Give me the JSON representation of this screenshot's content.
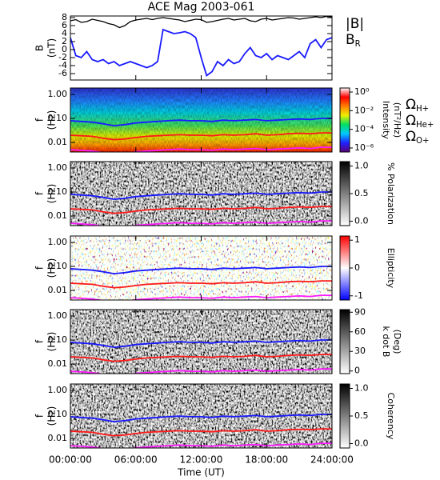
{
  "chart_data": [
    {
      "type": "line",
      "title": "ACE Mag 2003-061",
      "ylabel": [
        "B",
        "(nT)"
      ],
      "ylim": [
        -7.6,
        8.4
      ],
      "yticks": [
        8,
        6,
        4,
        2,
        0,
        -2,
        -4,
        -6
      ],
      "xlim": [
        0,
        24
      ],
      "x": [
        0,
        0.5,
        1,
        1.5,
        2,
        2.5,
        3,
        3.5,
        4,
        4.5,
        5,
        5.5,
        6,
        6.5,
        7,
        7.5,
        8,
        8.5,
        9,
        9.5,
        10,
        10.5,
        11,
        11.5,
        12,
        12.5,
        13,
        13.5,
        14,
        14.5,
        15,
        15.5,
        16,
        16.5,
        17,
        17.5,
        18,
        18.5,
        19,
        19.5,
        20,
        20.5,
        21,
        21.5,
        22,
        22.5,
        23,
        23.5,
        24
      ],
      "series": [
        {
          "name": "|B|",
          "color": "#000000",
          "values": [
            7.2,
            7.5,
            6.8,
            7.0,
            7.6,
            7.3,
            7.0,
            6.5,
            6.2,
            5.5,
            6.0,
            7.0,
            7.4,
            7.6,
            7.8,
            7.5,
            7.8,
            8.0,
            7.8,
            7.6,
            7.4,
            7.0,
            7.3,
            7.6,
            7.5,
            6.8,
            7.0,
            7.3,
            7.6,
            7.8,
            7.4,
            7.6,
            7.8,
            7.2,
            7.0,
            7.6,
            7.8,
            7.4,
            7.6,
            7.8,
            8.0,
            7.9,
            7.6,
            7.8,
            8.0,
            8.2,
            8.0,
            8.3,
            8.2
          ]
        },
        {
          "name": "B",
          "subscript": "R",
          "color": "#1a1aff",
          "values": [
            3.0,
            -1.5,
            -2.0,
            -0.5,
            -2.5,
            -3.0,
            -2.5,
            -3.5,
            -3.0,
            -4.0,
            -3.5,
            -3.0,
            -3.5,
            -4.0,
            -4.5,
            -4.0,
            -3.0,
            5.0,
            4.5,
            4.0,
            4.2,
            4.5,
            4.0,
            3.0,
            -2.0,
            -6.5,
            -5.5,
            -3.0,
            -4.0,
            -2.5,
            -3.5,
            -3.0,
            -1.0,
            0.5,
            -1.5,
            -2.0,
            -1.0,
            -2.5,
            -1.5,
            -2.0,
            -2.5,
            -1.5,
            -0.5,
            -2.0,
            1.5,
            2.5,
            0.5,
            2.5,
            3.0
          ]
        }
      ]
    },
    {
      "type": "spectrogram",
      "ylabel": [
        "f",
        "(Hz)"
      ],
      "log_y": true,
      "ylim": [
        0.004,
        1.85
      ],
      "yticks": [
        {
          "value": 1,
          "label": "1.00"
        },
        {
          "value": 0.1,
          "label": "0.10"
        },
        {
          "value": 0.01,
          "label": "0.01"
        }
      ],
      "xlim": [
        0,
        24
      ],
      "x": [
        0,
        1,
        2,
        3,
        4,
        5,
        6,
        7,
        8,
        9,
        10,
        11,
        12,
        13,
        14,
        15,
        16,
        17,
        18,
        19,
        20,
        21,
        22,
        23,
        24
      ],
      "series": [
        {
          "name": "Ω",
          "subscript": "H+",
          "color": "#1a1aff",
          "values": [
            0.08,
            0.075,
            0.07,
            0.06,
            0.05,
            0.055,
            0.065,
            0.07,
            0.075,
            0.08,
            0.085,
            0.08,
            0.08,
            0.075,
            0.085,
            0.08,
            0.085,
            0.09,
            0.08,
            0.085,
            0.09,
            0.095,
            0.09,
            0.1,
            0.1
          ]
        },
        {
          "name": "Ω",
          "subscript": "He+",
          "color": "#ff1a1a",
          "values": [
            0.02,
            0.019,
            0.018,
            0.015,
            0.013,
            0.014,
            0.016,
            0.018,
            0.019,
            0.02,
            0.021,
            0.02,
            0.02,
            0.019,
            0.021,
            0.02,
            0.021,
            0.023,
            0.02,
            0.021,
            0.023,
            0.024,
            0.023,
            0.025,
            0.025
          ]
        },
        {
          "name": "Ω",
          "subscript": "O+",
          "color": "#ff1aff",
          "values": [
            0.005,
            0.0047,
            0.0044,
            0.0038,
            0.0031,
            0.0034,
            0.0041,
            0.0044,
            0.0047,
            0.005,
            0.0053,
            0.005,
            0.005,
            0.0047,
            0.0053,
            0.005,
            0.0053,
            0.0056,
            0.005,
            0.0053,
            0.0056,
            0.0059,
            0.0056,
            0.0063,
            0.0063
          ]
        }
      ],
      "colorbar": {
        "label": [
          "Intensity",
          "(nT²/Hz)"
        ],
        "log": true,
        "lim": [
          3.7e-07,
          2.7
        ],
        "ticks": [
          {
            "value": 1,
            "label": "10⁰"
          },
          {
            "value": 0.01,
            "label": "10⁻²"
          },
          {
            "value": 0.0001,
            "label": "10⁻⁴"
          },
          {
            "value": 1e-06,
            "label": "10⁻⁶"
          }
        ],
        "colors": [
          "#5a007a",
          "#2020ff",
          "#00c8ff",
          "#00e060",
          "#f0f000",
          "#ff8000",
          "#ff0000",
          "#ffffff"
        ]
      }
    },
    {
      "type": "spectrogram",
      "ylabel": [
        "f",
        "(Hz)"
      ],
      "log_y": true,
      "ylim": [
        0.004,
        1.85
      ],
      "yticks": [
        {
          "value": 1,
          "label": "1.00"
        },
        {
          "value": 0.1,
          "label": "0.10"
        },
        {
          "value": 0.01,
          "label": "0.01"
        }
      ],
      "colorbar": {
        "label": [
          "% Polarization"
        ],
        "lim": [
          -0.08,
          1.08
        ],
        "ticks": [
          {
            "value": 1,
            "label": "1.0"
          },
          {
            "value": 0.5,
            "label": "0.5"
          },
          {
            "value": 0,
            "label": "0.0"
          }
        ],
        "colors": [
          "#ffffff",
          "#000000"
        ]
      }
    },
    {
      "type": "spectrogram",
      "ylabel": [
        "f",
        "(Hz)"
      ],
      "log_y": true,
      "ylim": [
        0.004,
        1.85
      ],
      "yticks": [
        {
          "value": 1,
          "label": "1.00"
        },
        {
          "value": 0.1,
          "label": "0.10"
        },
        {
          "value": 0.01,
          "label": "0.01"
        }
      ],
      "colorbar": {
        "label": [
          "Ellipticity"
        ],
        "lim": [
          -1.15,
          1.15
        ],
        "ticks": [
          1,
          0,
          -1
        ],
        "colors": [
          "#0000ff",
          "#ffffff",
          "#ff0000"
        ]
      }
    },
    {
      "type": "spectrogram",
      "ylabel": [
        "f",
        "(Hz)"
      ],
      "log_y": true,
      "ylim": [
        0.004,
        1.85
      ],
      "yticks": [
        {
          "value": 1,
          "label": "1.00"
        },
        {
          "value": 0.1,
          "label": "0.10"
        },
        {
          "value": 0.01,
          "label": "0.01"
        }
      ],
      "colorbar": {
        "label": [
          "k dot B",
          "(Deg)"
        ],
        "lim": [
          -4,
          94
        ],
        "ticks": [
          90,
          60,
          30,
          0
        ],
        "colors": [
          "#ffffff",
          "#000000"
        ]
      }
    },
    {
      "type": "spectrogram",
      "ylabel": [
        "f",
        "(Hz)"
      ],
      "log_y": true,
      "ylim": [
        0.004,
        1.85
      ],
      "yticks": [
        {
          "value": 1,
          "label": "1.00"
        },
        {
          "value": 0.1,
          "label": "0.10"
        },
        {
          "value": 0.01,
          "label": "0.01"
        }
      ],
      "colorbar": {
        "label": [
          "Coherency"
        ],
        "lim": [
          -0.08,
          1.08
        ],
        "ticks": [
          {
            "value": 1,
            "label": "1.0"
          },
          {
            "value": 0.5,
            "label": "0.5"
          },
          {
            "value": 0,
            "label": "0.0"
          }
        ],
        "colors": [
          "#ffffff",
          "#000000"
        ]
      },
      "xlabel": "Time (UT)",
      "xticks": [
        {
          "value": 0,
          "label": "00:00:00"
        },
        {
          "value": 6,
          "label": "06:00:00"
        },
        {
          "value": 12,
          "label": "12:00:00"
        },
        {
          "value": 18,
          "label": "18:00:00"
        },
        {
          "value": 24,
          "label": "24:00:00"
        }
      ]
    }
  ]
}
